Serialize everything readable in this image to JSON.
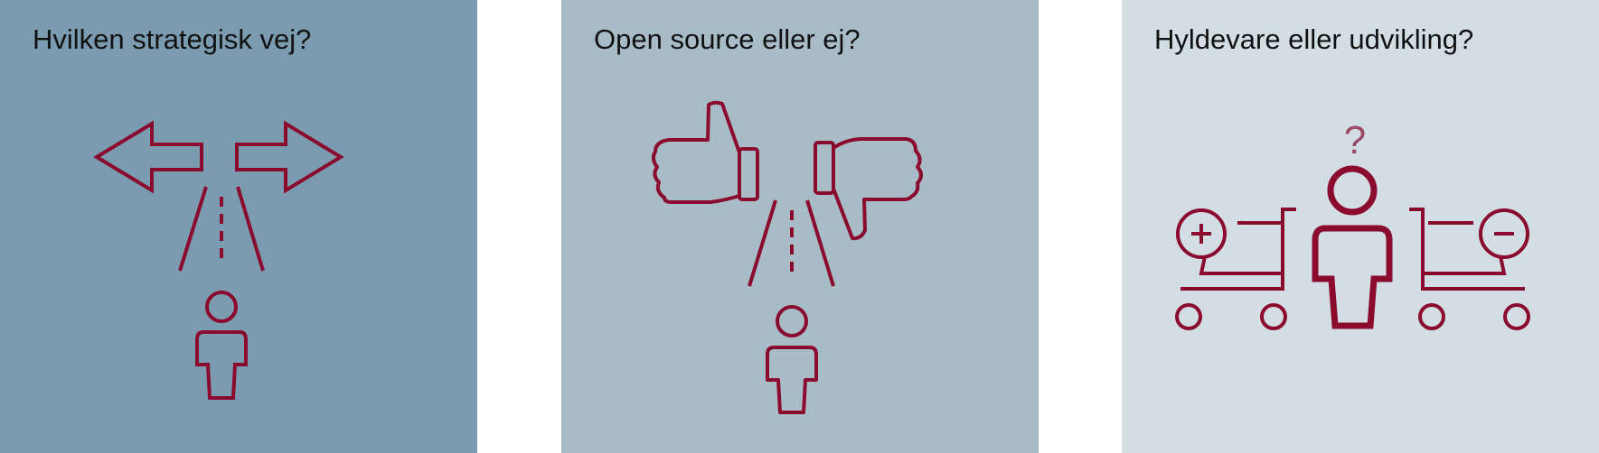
{
  "colors": {
    "panel_1_bg": "#7b9bb0",
    "panel_2_bg": "#a8bcc8",
    "panel_3_bg": "#d3dee4",
    "icon": "#8a0b2e",
    "question_mark": "#9b4a66"
  },
  "panels": [
    {
      "title": "Hvilken strategisk vej?",
      "icon": "crossroads-arrows-icon"
    },
    {
      "title": "Open source eller ej?",
      "icon": "thumbs-up-down-icon"
    },
    {
      "title": "Hyldevare eller udvikling?",
      "icon": "shopping-carts-choice-icon"
    }
  ],
  "question_mark": "?"
}
